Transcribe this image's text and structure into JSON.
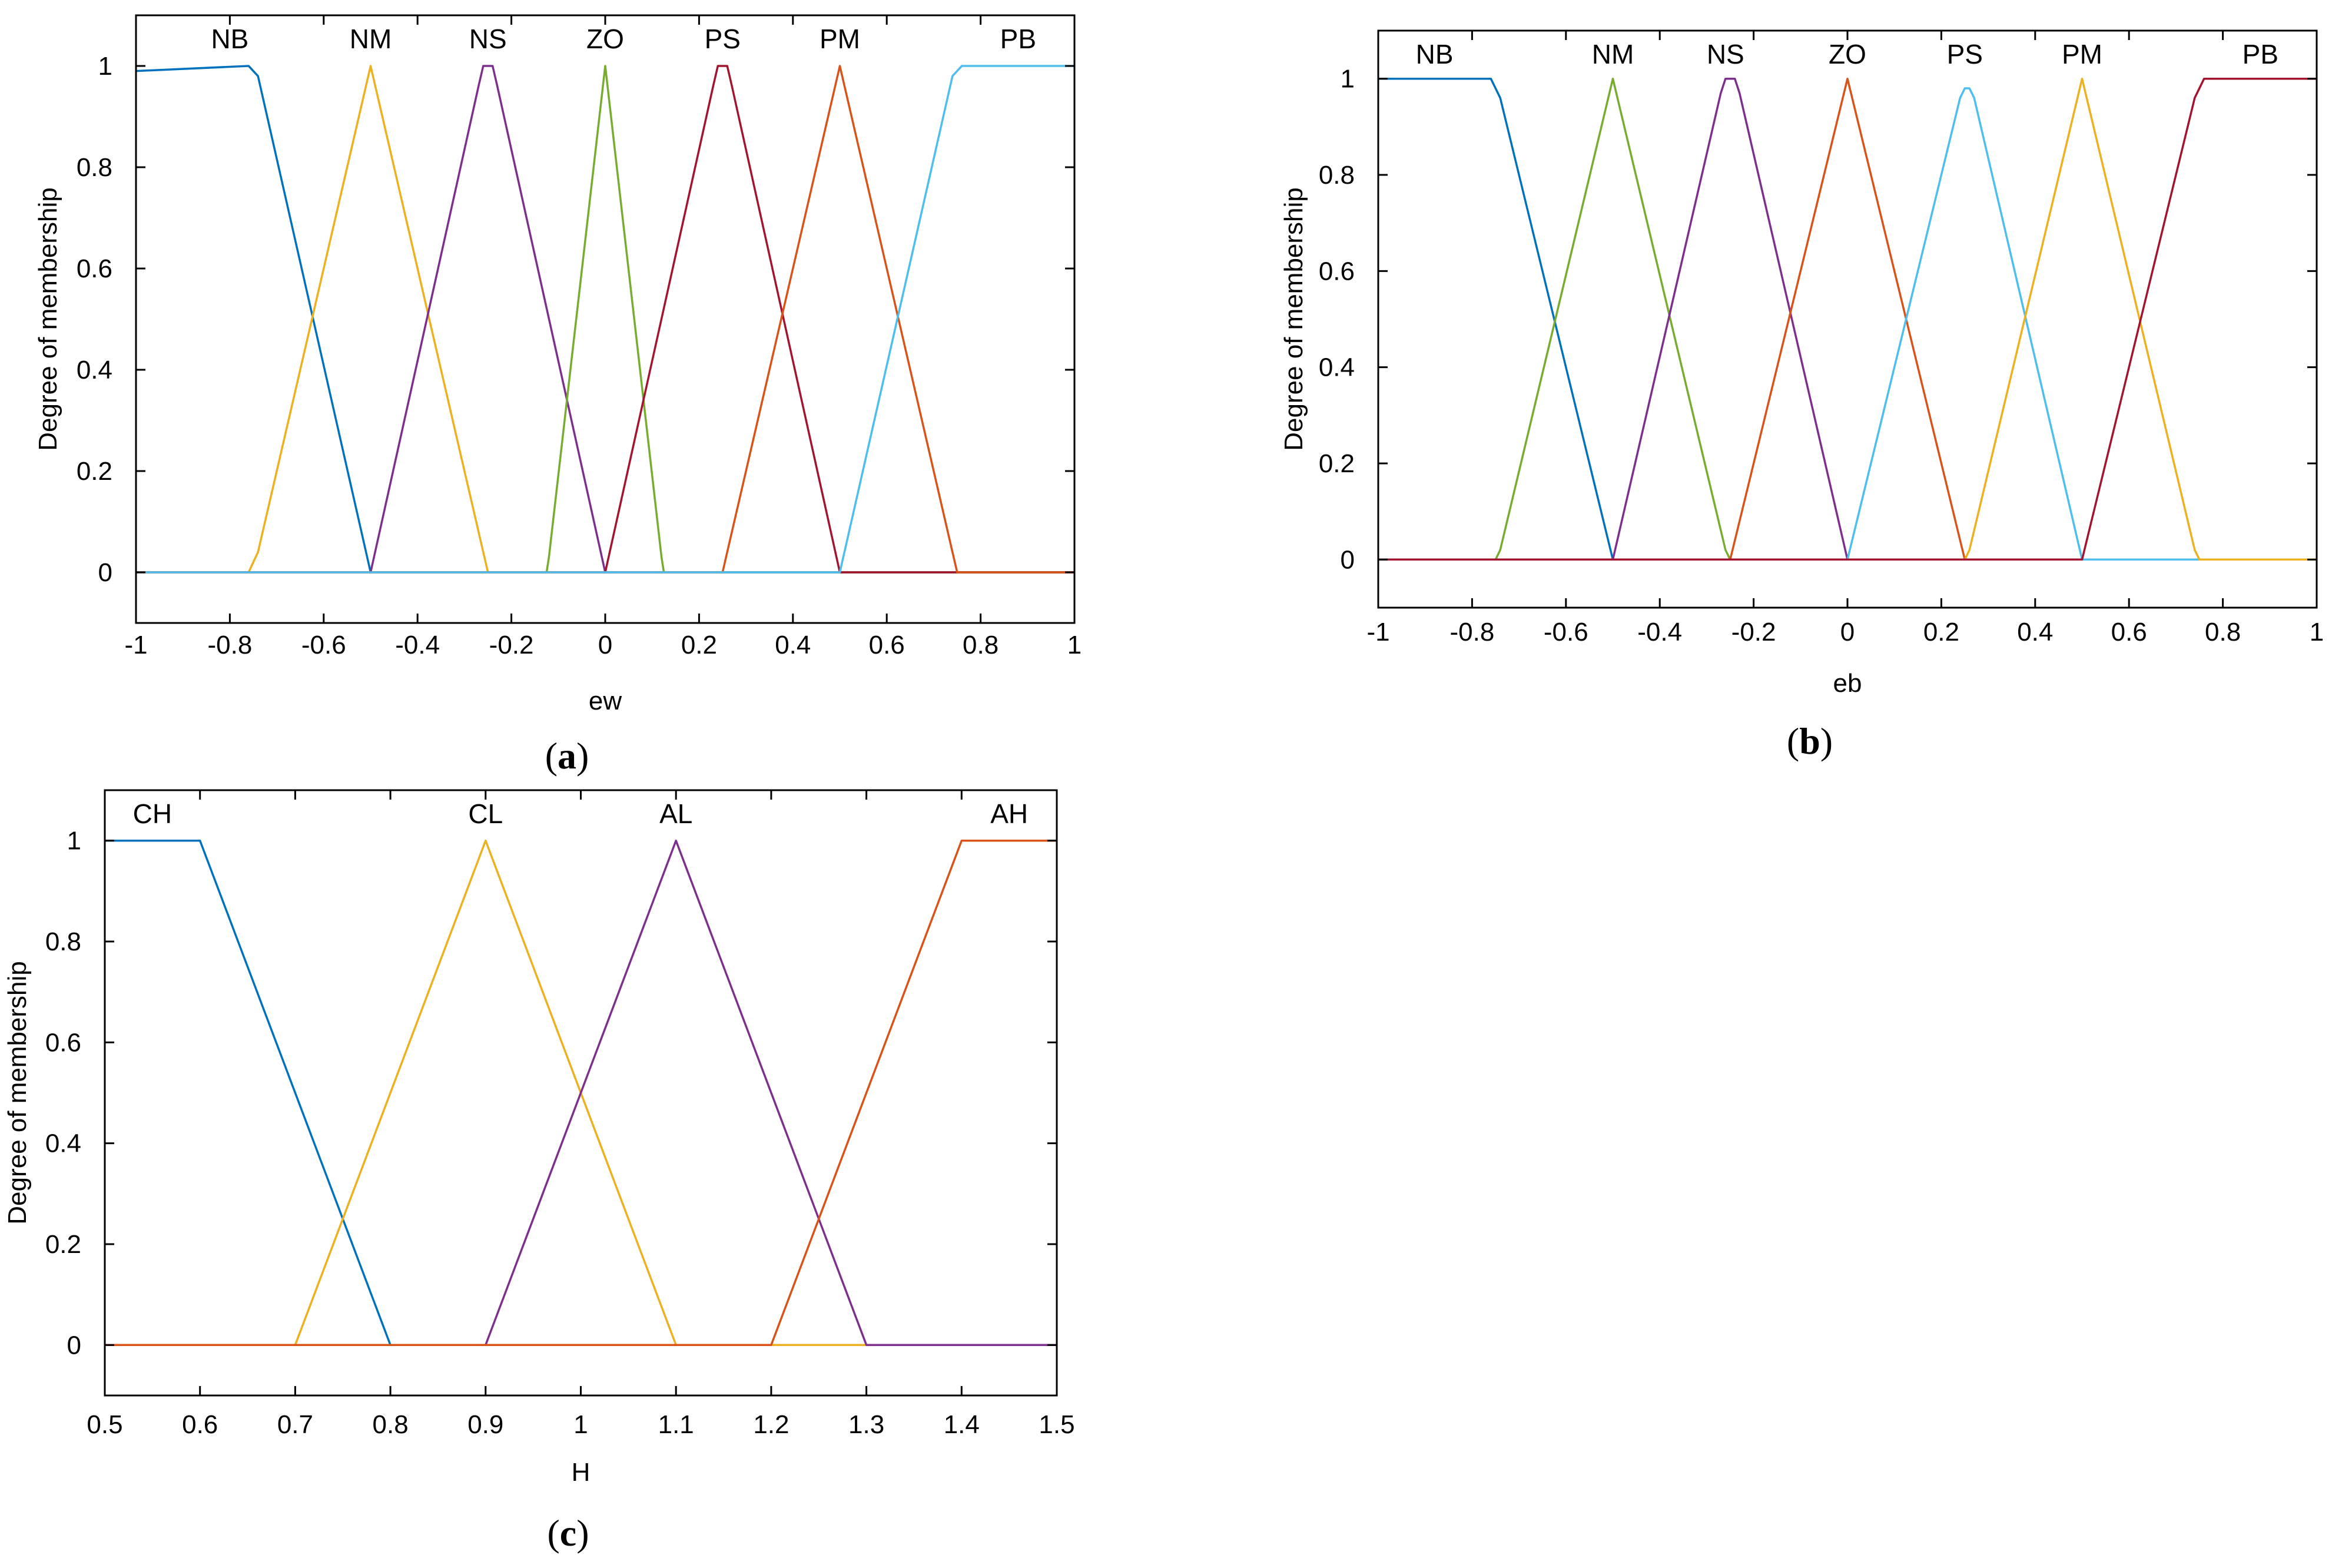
{
  "chart_data": [
    {
      "type": "line",
      "panel": "(a)",
      "xlabel": "ew",
      "ylabel": "Degree of membership",
      "xlim": [
        -1,
        1
      ],
      "ylim": [
        -0.1,
        1.1
      ],
      "xticks": [
        -1,
        -0.8,
        -0.6,
        -0.4,
        -0.2,
        0,
        0.2,
        0.4,
        0.6,
        0.8,
        1
      ],
      "xtick_labels": [
        "-1",
        "-0.8",
        "-0.6",
        "-0.4",
        "-0.2",
        "0",
        "0.2",
        "0.4",
        "0.6",
        "0.8",
        "1"
      ],
      "yticks": [
        0,
        0.2,
        0.4,
        0.6,
        0.8,
        1
      ],
      "ytick_labels": [
        "0",
        "0.2",
        "0.4",
        "0.6",
        "0.8",
        "1"
      ],
      "grid": false,
      "series": [
        {
          "name": "NB",
          "color": "#0072BD",
          "label_x": -0.8,
          "points": [
            [
              -1,
              0.99
            ],
            [
              -0.76,
              1
            ],
            [
              -0.74,
              0.98
            ],
            [
              -0.5,
              0
            ],
            [
              1,
              0
            ]
          ]
        },
        {
          "name": "NM",
          "color": "#EDB120",
          "label_x": -0.5,
          "points": [
            [
              -1,
              0
            ],
            [
              -0.76,
              0
            ],
            [
              -0.74,
              0.04
            ],
            [
              -0.5,
              1
            ],
            [
              -0.26,
              0.04
            ],
            [
              -0.25,
              0
            ],
            [
              1,
              0
            ]
          ]
        },
        {
          "name": "NS",
          "color": "#7E2F8E",
          "label_x": -0.25,
          "points": [
            [
              -1,
              0
            ],
            [
              -0.5,
              0
            ],
            [
              -0.27,
              0.96
            ],
            [
              -0.26,
              1
            ],
            [
              -0.24,
              1
            ],
            [
              -0.23,
              0.96
            ],
            [
              0,
              0
            ],
            [
              1,
              0
            ]
          ]
        },
        {
          "name": "ZO",
          "color": "#77AC30",
          "label_x": 0,
          "points": [
            [
              -1,
              0
            ],
            [
              -0.125,
              0
            ],
            [
              -0.12,
              0.03
            ],
            [
              0,
              1
            ],
            [
              0.12,
              0.03
            ],
            [
              0.125,
              0
            ],
            [
              1,
              0
            ]
          ]
        },
        {
          "name": "PS",
          "color": "#A2142F",
          "label_x": 0.25,
          "points": [
            [
              -1,
              0
            ],
            [
              0,
              0
            ],
            [
              0.23,
              0.96
            ],
            [
              0.24,
              1
            ],
            [
              0.26,
              1
            ],
            [
              0.27,
              0.96
            ],
            [
              0.5,
              0
            ],
            [
              1,
              0
            ]
          ]
        },
        {
          "name": "PM",
          "color": "#D95319",
          "label_x": 0.5,
          "points": [
            [
              -1,
              0
            ],
            [
              0.25,
              0
            ],
            [
              0.26,
              0.04
            ],
            [
              0.5,
              1
            ],
            [
              0.74,
              0.04
            ],
            [
              0.75,
              0
            ],
            [
              1,
              0
            ]
          ]
        },
        {
          "name": "PB",
          "color": "#4DBEEE",
          "label_x": 0.88,
          "points": [
            [
              -1,
              0
            ],
            [
              0.5,
              0
            ],
            [
              0.74,
              0.98
            ],
            [
              0.76,
              1
            ],
            [
              1,
              1
            ]
          ]
        }
      ]
    },
    {
      "type": "line",
      "panel": "(b)",
      "xlabel": "eb",
      "ylabel": "Degree of membership",
      "xlim": [
        -1,
        1
      ],
      "ylim": [
        -0.1,
        1.1
      ],
      "xticks": [
        -1,
        -0.8,
        -0.6,
        -0.4,
        -0.2,
        0,
        0.2,
        0.4,
        0.6,
        0.8,
        1
      ],
      "xtick_labels": [
        "-1",
        "-0.8",
        "-0.6",
        "-0.4",
        "-0.2",
        "0",
        "0.2",
        "0.4",
        "0.6",
        "0.8",
        "1"
      ],
      "yticks": [
        0,
        0.2,
        0.4,
        0.6,
        0.8,
        1
      ],
      "ytick_labels": [
        "0",
        "0.2",
        "0.4",
        "0.6",
        "0.8",
        "1"
      ],
      "grid": false,
      "series": [
        {
          "name": "NB",
          "color": "#0072BD",
          "label_x": -0.88,
          "points": [
            [
              -1,
              1
            ],
            [
              -0.76,
              1
            ],
            [
              -0.74,
              0.96
            ],
            [
              -0.5,
              0
            ],
            [
              1,
              0
            ]
          ]
        },
        {
          "name": "NM",
          "color": "#77AC30",
          "label_x": -0.5,
          "points": [
            [
              -1,
              0
            ],
            [
              -0.75,
              0
            ],
            [
              -0.74,
              0.02
            ],
            [
              -0.5,
              1
            ],
            [
              -0.26,
              0.02
            ],
            [
              -0.25,
              0
            ],
            [
              1,
              0
            ]
          ]
        },
        {
          "name": "NS",
          "color": "#7E2F8E",
          "label_x": -0.26,
          "points": [
            [
              -1,
              0
            ],
            [
              -0.5,
              0
            ],
            [
              -0.27,
              0.97
            ],
            [
              -0.26,
              1
            ],
            [
              -0.24,
              1
            ],
            [
              -0.23,
              0.97
            ],
            [
              0,
              0
            ],
            [
              1,
              0
            ]
          ]
        },
        {
          "name": "ZO",
          "color": "#D95319",
          "label_x": 0,
          "points": [
            [
              -1,
              0
            ],
            [
              -0.25,
              0
            ],
            [
              0,
              1
            ],
            [
              0.25,
              0
            ],
            [
              1,
              0
            ]
          ]
        },
        {
          "name": "PS",
          "color": "#4DBEEE",
          "label_x": 0.25,
          "points": [
            [
              -1,
              0
            ],
            [
              0,
              0
            ],
            [
              0.24,
              0.96
            ],
            [
              0.25,
              0.98
            ],
            [
              0.26,
              0.98
            ],
            [
              0.27,
              0.96
            ],
            [
              0.5,
              0
            ],
            [
              1,
              0
            ]
          ]
        },
        {
          "name": "PM",
          "color": "#EDB120",
          "label_x": 0.5,
          "points": [
            [
              -1,
              0
            ],
            [
              0.25,
              0
            ],
            [
              0.26,
              0.02
            ],
            [
              0.5,
              1
            ],
            [
              0.74,
              0.02
            ],
            [
              0.75,
              0
            ],
            [
              1,
              0
            ]
          ]
        },
        {
          "name": "PB",
          "color": "#A2142F",
          "label_x": 0.88,
          "points": [
            [
              -1,
              0
            ],
            [
              0.5,
              0
            ],
            [
              0.74,
              0.96
            ],
            [
              0.76,
              1
            ],
            [
              1,
              1
            ]
          ]
        }
      ]
    },
    {
      "type": "line",
      "panel": "(c)",
      "xlabel": "H",
      "ylabel": "Degree of membership",
      "xlim": [
        0.5,
        1.5
      ],
      "ylim": [
        -0.1,
        1.1
      ],
      "xticks": [
        0.5,
        0.6,
        0.7,
        0.8,
        0.9,
        1,
        1.1,
        1.2,
        1.3,
        1.4,
        1.5
      ],
      "xtick_labels": [
        "0.5",
        "0.6",
        "0.7",
        "0.8",
        "0.9",
        "1",
        "1.1",
        "1.2",
        "1.3",
        "1.4",
        "1.5"
      ],
      "yticks": [
        0,
        0.2,
        0.4,
        0.6,
        0.8,
        1
      ],
      "ytick_labels": [
        "0",
        "0.2",
        "0.4",
        "0.6",
        "0.8",
        "1"
      ],
      "grid": false,
      "series": [
        {
          "name": "CH",
          "color": "#0072BD",
          "label_x": 0.55,
          "points": [
            [
              0.5,
              1
            ],
            [
              0.6,
              1
            ],
            [
              0.8,
              0
            ],
            [
              1.5,
              0
            ]
          ]
        },
        {
          "name": "CL",
          "color": "#EDB120",
          "label_x": 0.9,
          "points": [
            [
              0.5,
              0
            ],
            [
              0.7,
              0
            ],
            [
              0.9,
              1
            ],
            [
              1.1,
              0
            ],
            [
              1.5,
              0
            ]
          ]
        },
        {
          "name": "AL",
          "color": "#7E2F8E",
          "label_x": 1.1,
          "points": [
            [
              0.5,
              0
            ],
            [
              0.9,
              0
            ],
            [
              1.1,
              1
            ],
            [
              1.3,
              0
            ],
            [
              1.5,
              0
            ]
          ]
        },
        {
          "name": "AH",
          "color": "#D95319",
          "label_x": 1.45,
          "points": [
            [
              0.5,
              0
            ],
            [
              1.2,
              0
            ],
            [
              1.4,
              1
            ],
            [
              1.5,
              1
            ]
          ]
        }
      ]
    }
  ]
}
